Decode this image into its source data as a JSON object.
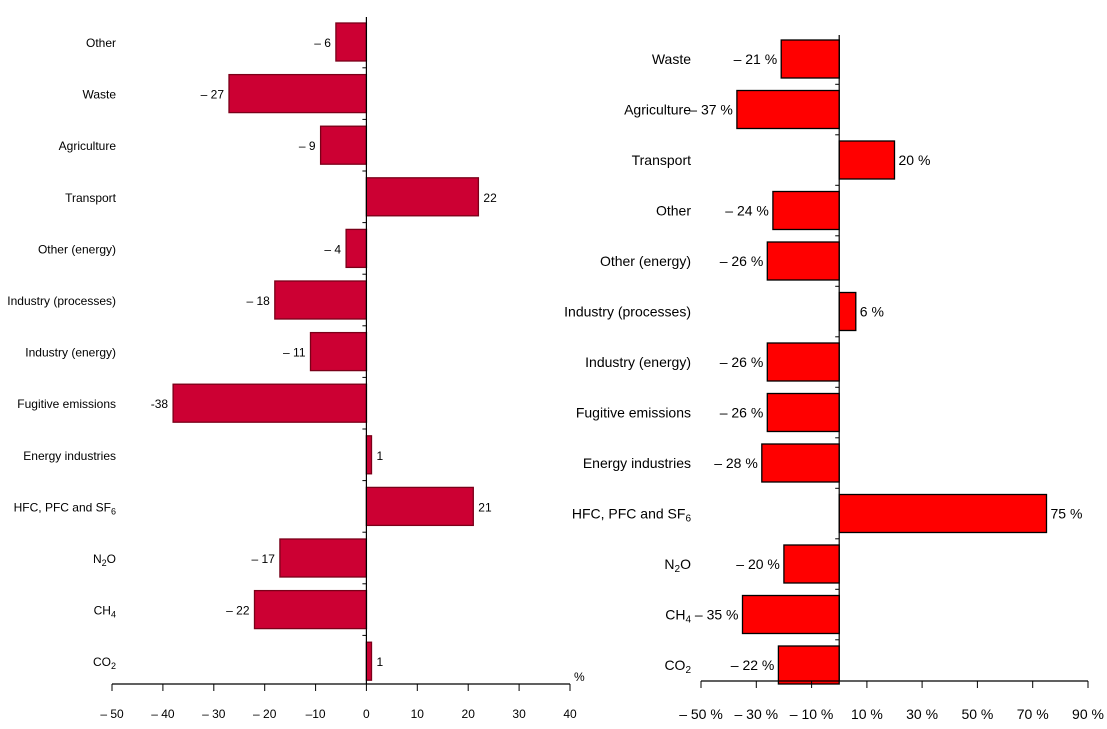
{
  "chart_data": [
    {
      "type": "bar",
      "orientation": "horizontal",
      "categories": [
        "Other",
        "Waste",
        "Agriculture",
        "Transport",
        "Other (energy)",
        "Industry (processes)",
        "Industry (energy)",
        "Fugitive emissions",
        "Energy industries",
        "HFC, PFC and SF6",
        "N2O",
        "CH4",
        "CO2"
      ],
      "values": [
        -6,
        -27,
        -9,
        22,
        -4,
        -18,
        -11,
        -38,
        1,
        21,
        -17,
        -22,
        1
      ],
      "data_labels": [
        "– 6",
        "– 27",
        "– 9",
        "22",
        "– 4",
        "– 18",
        "– 11",
        "-38",
        "1",
        "21",
        "– 17",
        "– 22",
        "1"
      ],
      "x_ticks": [
        "– 50",
        "– 40",
        "– 30",
        "– 20",
        "–10",
        "0",
        "10",
        "20",
        "30",
        "40"
      ],
      "x_tick_values": [
        -50,
        -40,
        -30,
        -20,
        -10,
        0,
        10,
        20,
        30,
        40
      ],
      "xlim": [
        -50,
        40
      ],
      "unit_label": "%",
      "bar_color": "#cc0033",
      "grid": false
    },
    {
      "type": "bar",
      "orientation": "horizontal",
      "categories": [
        "Waste",
        "Agriculture",
        "Transport",
        "Other",
        "Other (energy)",
        "Industry (processes)",
        "Industry (energy)",
        "Fugitive emissions",
        "Energy industries",
        "HFC, PFC and SF6",
        "N2O",
        "CH4",
        "CO2"
      ],
      "values": [
        -21,
        -37,
        20,
        -24,
        -26,
        6,
        -26,
        -26,
        -28,
        75,
        -20,
        -35,
        -22
      ],
      "data_labels": [
        "– 21 %",
        "– 37 %",
        "20 %",
        "– 24 %",
        "– 26 %",
        "6 %",
        "– 26 %",
        "– 26 %",
        "– 28 %",
        "75 %",
        "– 20 %",
        "– 35 %",
        "– 22 %"
      ],
      "x_ticks": [
        "– 50 %",
        "– 30 %",
        "– 10 %",
        "10 %",
        "30 %",
        "50 %",
        "70 %",
        "90 %"
      ],
      "x_tick_values": [
        -50,
        -30,
        -10,
        10,
        30,
        50,
        70,
        90
      ],
      "xlim": [
        -50,
        90
      ],
      "bar_color": "#ff0000",
      "grid": false
    }
  ]
}
